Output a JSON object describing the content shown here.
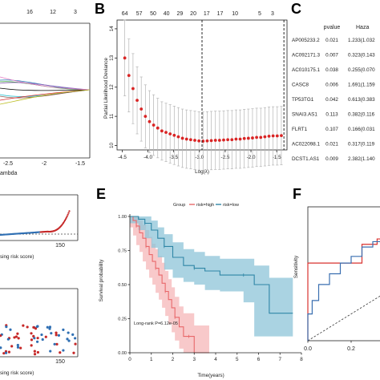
{
  "panels": {
    "a": {
      "xlabel": "ambda",
      "xticks": [
        -2.5,
        -2.0,
        -1.5
      ],
      "top_counts": [
        16,
        12,
        3
      ]
    },
    "b": {
      "label": "B"
    },
    "c": {
      "label": "C"
    },
    "d": {
      "xlabel": "sing risk score)",
      "xtick": 150
    },
    "d2": {
      "xlabel": "sing risk score)",
      "xtick": 150
    },
    "e": {
      "label": "E"
    },
    "f": {
      "label": "F"
    }
  },
  "chart_data": [
    {
      "type": "scatter",
      "panel": "B",
      "title": "",
      "xlabel": "Log(λ)",
      "ylabel": "Partial Likelihood Deviance",
      "top_counts": [
        64,
        57,
        50,
        40,
        29,
        20,
        17,
        17,
        10,
        5,
        3
      ],
      "top_count_x": [
        -4.45,
        -4.17,
        -3.9,
        -3.64,
        -3.38,
        -3.12,
        -2.86,
        -2.6,
        -2.31,
        -1.83,
        -1.58
      ],
      "xlim": [
        -4.6,
        -1.3
      ],
      "ylim": [
        9.85,
        14.3
      ],
      "xticks": [
        -4.5,
        -4.0,
        -3.5,
        -3.0,
        -2.5,
        -2.0,
        -1.5
      ],
      "yticks": [
        10,
        11,
        12,
        13,
        14
      ],
      "vlines": [
        -2.95,
        -1.36
      ],
      "x": [
        -4.45,
        -4.37,
        -4.29,
        -4.21,
        -4.13,
        -4.05,
        -3.97,
        -3.89,
        -3.81,
        -3.73,
        -3.65,
        -3.57,
        -3.49,
        -3.41,
        -3.33,
        -3.25,
        -3.17,
        -3.09,
        -3.01,
        -2.93,
        -2.85,
        -2.77,
        -2.69,
        -2.61,
        -2.53,
        -2.45,
        -2.37,
        -2.29,
        -2.21,
        -2.13,
        -2.05,
        -1.97,
        -1.89,
        -1.81,
        -1.73,
        -1.65,
        -1.57,
        -1.49,
        -1.41
      ],
      "y": [
        13.0,
        12.4,
        11.95,
        11.55,
        11.25,
        11.0,
        10.82,
        10.7,
        10.6,
        10.5,
        10.45,
        10.4,
        10.35,
        10.3,
        10.25,
        10.22,
        10.2,
        10.18,
        10.16,
        10.15,
        10.16,
        10.17,
        10.18,
        10.18,
        10.19,
        10.2,
        10.2,
        10.22,
        10.22,
        10.24,
        10.25,
        10.26,
        10.28,
        10.28,
        10.3,
        10.32,
        10.33,
        10.33,
        10.34
      ],
      "err": [
        1.3,
        1.25,
        1.2,
        1.15,
        1.1,
        1.08,
        1.06,
        1.04,
        1.02,
        1.0,
        1.0,
        1.0,
        1.0,
        1.0,
        1.0,
        1.0,
        1.0,
        1.0,
        1.0,
        1.0,
        1.0,
        1.0,
        1.0,
        1.0,
        1.0,
        1.0,
        1.0,
        1.0,
        1.0,
        1.0,
        1.0,
        1.0,
        1.0,
        1.0,
        1.0,
        1.0,
        1.0,
        1.0,
        1.0
      ]
    },
    {
      "type": "table",
      "panel": "C",
      "columns": [
        "pvalue",
        "Haza"
      ],
      "rows": [
        {
          "gene": "AP005233.2",
          "pvalue": "0.021",
          "hr": "1.233(1.032"
        },
        {
          "gene": "AC092171.3",
          "pvalue": "0.007",
          "hr": "0.323(0.143"
        },
        {
          "gene": "AC010175.1",
          "pvalue": "0.038",
          "hr": "0.255(0.070"
        },
        {
          "gene": "CASC8",
          "pvalue": "0.006",
          "hr": "1.691(1.159"
        },
        {
          "gene": "TP53TG1",
          "pvalue": "0.042",
          "hr": "0.613(0.383"
        },
        {
          "gene": "SNAI3.AS1",
          "pvalue": "0.113",
          "hr": "0.382(0.116"
        },
        {
          "gene": "FLRT1",
          "pvalue": "0.107",
          "hr": "0.166(0.031"
        },
        {
          "gene": "AC022098.1",
          "pvalue": "0.021",
          "hr": "0.317(0.119"
        },
        {
          "gene": "DCST1.AS1",
          "pvalue": "0.009",
          "hr": "2.382(1.140"
        }
      ]
    },
    {
      "type": "line",
      "panel": "E",
      "title": "",
      "xlabel": "Time(years)",
      "ylabel": "Survival probability",
      "legend_title": "Group",
      "legend_position": "top",
      "xlim": [
        0,
        8
      ],
      "ylim": [
        0,
        1
      ],
      "xticks": [
        0,
        1,
        2,
        3,
        4,
        5,
        6,
        7,
        8
      ],
      "yticks": [
        0.0,
        0.25,
        0.5,
        0.75,
        1.0
      ],
      "ytick_labels": [
        "0.00",
        "0.25",
        "0.50",
        "0.75",
        "1.00"
      ],
      "annotation": "Long-rank P=6.12e-05",
      "series": [
        {
          "name": "risk=high",
          "color": "#e8686a",
          "band": "#f5b7b8",
          "x": [
            0,
            0.15,
            0.3,
            0.45,
            0.6,
            0.75,
            0.9,
            1.05,
            1.2,
            1.35,
            1.5,
            1.65,
            1.8,
            1.95,
            2.1,
            2.3,
            2.5,
            2.75,
            3.0,
            3.7
          ],
          "y": [
            1.0,
            0.97,
            0.93,
            0.88,
            0.84,
            0.78,
            0.72,
            0.67,
            0.62,
            0.57,
            0.51,
            0.45,
            0.39,
            0.33,
            0.26,
            0.19,
            0.12,
            0.12,
            0.0,
            0.0
          ],
          "lower": [
            1.0,
            0.92,
            0.86,
            0.79,
            0.74,
            0.67,
            0.61,
            0.55,
            0.5,
            0.44,
            0.39,
            0.33,
            0.27,
            0.21,
            0.15,
            0.09,
            0.03,
            0.0,
            0.0,
            0.0
          ],
          "upper": [
            1.0,
            1.0,
            1.0,
            0.97,
            0.94,
            0.9,
            0.85,
            0.8,
            0.76,
            0.71,
            0.66,
            0.6,
            0.54,
            0.48,
            0.41,
            0.34,
            0.29,
            0.29,
            0.2,
            0.2
          ]
        },
        {
          "name": "risk=low",
          "color": "#2f86a6",
          "band": "#8ec4d8",
          "x": [
            0,
            0.4,
            0.7,
            1.0,
            1.3,
            1.6,
            2.0,
            2.5,
            3.0,
            3.5,
            4.2,
            5.3,
            5.8,
            6.5,
            7.6
          ],
          "y": [
            1.0,
            0.98,
            0.95,
            0.9,
            0.84,
            0.78,
            0.7,
            0.64,
            0.62,
            0.6,
            0.57,
            0.57,
            0.5,
            0.29,
            0.29
          ],
          "lower": [
            1.0,
            0.95,
            0.9,
            0.84,
            0.77,
            0.7,
            0.61,
            0.55,
            0.52,
            0.5,
            0.46,
            0.45,
            0.37,
            0.12,
            0.12
          ],
          "upper": [
            1.0,
            1.0,
            1.0,
            0.97,
            0.92,
            0.87,
            0.81,
            0.76,
            0.74,
            0.71,
            0.69,
            0.69,
            0.64,
            0.55,
            0.55
          ]
        }
      ]
    },
    {
      "type": "line",
      "panel": "F",
      "title": "",
      "xlabel": "",
      "ylabel": "Sensitivity",
      "xticks": [
        0.0,
        0.2
      ],
      "xtick_labels": [
        "0.0",
        "0.2"
      ],
      "series": [
        {
          "color": "#d9322f",
          "x": [
            0.0,
            0.0,
            0.25,
            0.25,
            0.32,
            0.32,
            0.4
          ],
          "y": [
            0.0,
            0.58,
            0.58,
            0.72,
            0.72,
            0.76,
            0.76
          ]
        },
        {
          "color": "#3a6fb0",
          "x": [
            0.0,
            0.0,
            0.02,
            0.02,
            0.05,
            0.05,
            0.1,
            0.1,
            0.15,
            0.15,
            0.2,
            0.2,
            0.25,
            0.25,
            0.3,
            0.3,
            0.4
          ],
          "y": [
            0.0,
            0.2,
            0.2,
            0.3,
            0.3,
            0.42,
            0.42,
            0.5,
            0.5,
            0.58,
            0.58,
            0.63,
            0.63,
            0.7,
            0.7,
            0.74,
            0.74
          ]
        }
      ]
    }
  ]
}
